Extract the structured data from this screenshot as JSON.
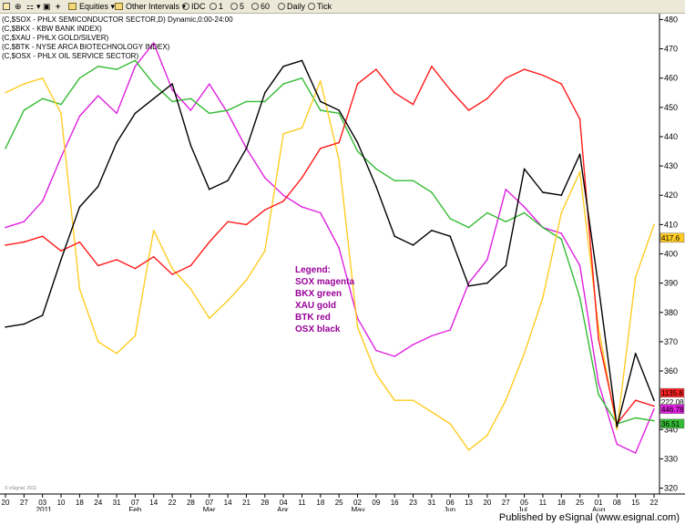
{
  "toolbar": {
    "equities": "Equities",
    "other_intervals": "Other Intervals",
    "intervals": [
      "IDC",
      "1",
      "5",
      "60",
      "Daily",
      "Tick"
    ]
  },
  "legend_lines": [
    "(C,$SOX - PHLX SEMICONDUCTOR SECTOR,D) Dynamic,0:00-24:00",
    "(C,$BKX - KBW BANK INDEX)",
    "(C,$XAU - PHLX GOLD/SILVER)",
    "(C,$BTK - NYSE ARCA BIOTECHNOLOGY INDEX)",
    "(C,$OSX - PHLX OIL SERVICE SECTOR)"
  ],
  "annotation": {
    "title": "Legend:",
    "lines": [
      "SOX magenta",
      "BKX green",
      "XAU gold",
      "BTK red",
      "OSX black"
    ]
  },
  "footer": {
    "publisher": "Published by eSignal (www.esignal.com)",
    "watermark": "© eSignal, 2011"
  },
  "colors": {
    "sox": "#e020e0",
    "bkx": "#33bb33",
    "xau": "#ffcc22",
    "btk": "#ff1a1a",
    "osx": "#000000",
    "annotation": "#990099"
  },
  "chart_data": {
    "type": "line",
    "x": [
      "Dec 20",
      "Dec 27",
      "Jan 03",
      "Jan 10",
      "Jan 17",
      "Jan 24",
      "Jan 31",
      "Feb 07",
      "Feb 14",
      "Feb 21",
      "Feb 28",
      "Mar 07",
      "Mar 14",
      "Mar 21",
      "Mar 28",
      "Apr 04",
      "Apr 11",
      "Apr 18",
      "Apr 25",
      "May 02",
      "May 09",
      "May 16",
      "May 23",
      "May 30",
      "Jun 06",
      "Jun 13",
      "Jun 20",
      "Jun 27",
      "Jul 05",
      "Jul 11",
      "Jul 18",
      "Jul 25",
      "Aug 01",
      "Aug 08",
      "Aug 15",
      "Aug 22"
    ],
    "x_tick_labels": [
      "20",
      "27",
      "03",
      "10",
      "18",
      "24",
      "31",
      "07",
      "14",
      "22",
      "28",
      "07",
      "14",
      "21",
      "28",
      "04",
      "11",
      "18",
      "25",
      "02",
      "09",
      "16",
      "23",
      "31",
      "06",
      "13",
      "20",
      "27",
      "05",
      "11",
      "18",
      "25",
      "01",
      "08",
      "15",
      "22"
    ],
    "month_labels": [
      {
        "label": "2011",
        "index": 2
      },
      {
        "label": "Feb",
        "index": 7
      },
      {
        "label": "Mar",
        "index": 11
      },
      {
        "label": "Apr",
        "index": 15
      },
      {
        "label": "May",
        "index": 19
      },
      {
        "label": "Jun",
        "index": 24
      },
      {
        "label": "Jul",
        "index": 28
      },
      {
        "label": "Aug",
        "index": 32
      }
    ],
    "y_ticks": [
      320,
      330,
      340,
      350,
      360,
      370,
      380,
      390,
      400,
      410,
      420,
      430,
      440,
      450,
      460,
      470,
      480
    ],
    "ylim": [
      318,
      482
    ],
    "y_side": "right",
    "grid": false,
    "price_markers": [
      {
        "label": "1135.8",
        "value": 352.5,
        "color": "#ff2020"
      },
      {
        "label": "222.08",
        "value": 349.5,
        "color": "#ffffff"
      },
      {
        "label": "446.78",
        "value": 347.0,
        "color": "#e020e0"
      },
      {
        "label": "36.51",
        "value": 342.0,
        "color": "#33bb33"
      },
      {
        "label": "417.6",
        "value": 405.5,
        "color": "#ffcc22"
      }
    ],
    "series": [
      {
        "name": "SOX magenta",
        "color": "#e020e0",
        "values": [
          409,
          411,
          418,
          433,
          447,
          454,
          448,
          464,
          472,
          456,
          449,
          458,
          448,
          436,
          426,
          420,
          416,
          414,
          402,
          378,
          367,
          365,
          369,
          372,
          374,
          390,
          398,
          422,
          416,
          409,
          407,
          396,
          356,
          335,
          332,
          347
        ]
      },
      {
        "name": "BKX green",
        "color": "#33bb33",
        "values": [
          436,
          449,
          453,
          451,
          460,
          464,
          463,
          466,
          458,
          452,
          453,
          448,
          449,
          452,
          452,
          458,
          460,
          449,
          448,
          435,
          429,
          425,
          425,
          421,
          412,
          409,
          414,
          411,
          414,
          409,
          405,
          385,
          352,
          342,
          344,
          343
        ]
      },
      {
        "name": "XAU gold",
        "color": "#ffcc22",
        "values": [
          455,
          458,
          460,
          448,
          388,
          370,
          366,
          372,
          408,
          395,
          388,
          378,
          384,
          391,
          401,
          441,
          443,
          459,
          432,
          375,
          359,
          350,
          350,
          346,
          342,
          333,
          338,
          350,
          366,
          385,
          414,
          428,
          375,
          340,
          392,
          410
        ]
      },
      {
        "name": "BTK red",
        "color": "#ff1a1a",
        "values": [
          403,
          404,
          406,
          401,
          404,
          396,
          398,
          395,
          399,
          393,
          396,
          404,
          411,
          410,
          415,
          418,
          426,
          436,
          438,
          458,
          463,
          455,
          451,
          464,
          456,
          449,
          453,
          460,
          463,
          461,
          458,
          446,
          371,
          342,
          350,
          348
        ]
      },
      {
        "name": "OSX black",
        "color": "#000000",
        "values": [
          375,
          376,
          379,
          398,
          416,
          423,
          438,
          448,
          453,
          458,
          437,
          422,
          425,
          436,
          455,
          464,
          466,
          452,
          449,
          438,
          423,
          406,
          403,
          408,
          406,
          389,
          390,
          396,
          429,
          421,
          420,
          434,
          389,
          341,
          366,
          350
        ]
      }
    ]
  }
}
